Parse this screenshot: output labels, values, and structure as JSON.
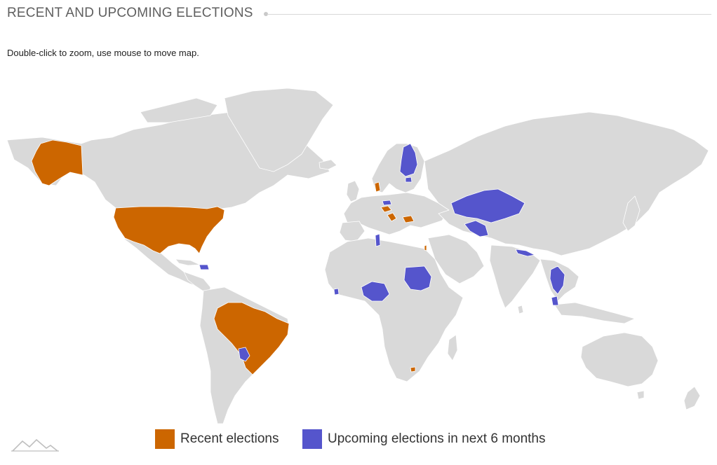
{
  "header": {
    "title": "RECENT AND UPCOMING ELECTIONS",
    "hint": "Double-click to zoom, use mouse to move map."
  },
  "legend": {
    "recent": {
      "label": "Recent elections",
      "color": "#cc6600"
    },
    "upcoming": {
      "label": "Upcoming elections in next 6 months",
      "color": "#5555cc"
    }
  },
  "map": {
    "land_color": "#d9d9d9",
    "border_color": "#ffffff",
    "recent_elections": [
      "Alaska (USA)",
      "United States",
      "Brazil",
      "Denmark",
      "Austria",
      "Croatia",
      "Bulgaria",
      "Israel",
      "Lesotho"
    ],
    "upcoming_elections": [
      "Finland",
      "Estonia",
      "Czech Republic",
      "Tunisia",
      "Kazakhstan",
      "Uzbekistan",
      "Nepal",
      "Thailand",
      "Malaysia",
      "Nigeria",
      "Sudan",
      "Sierra Leone",
      "Paraguay",
      "Dominican Republic"
    ]
  },
  "logo": {
    "icon": "mountain-logo-icon"
  }
}
